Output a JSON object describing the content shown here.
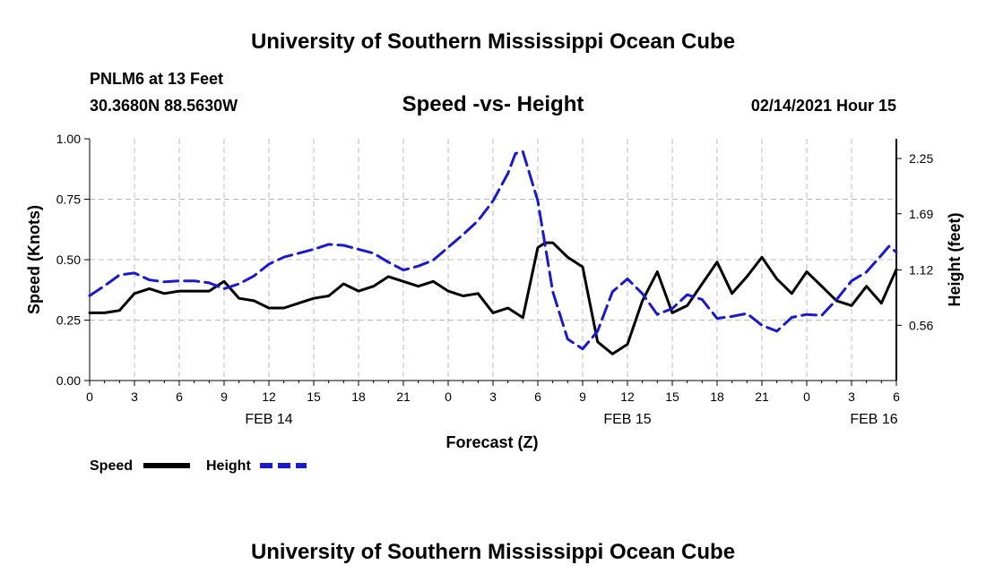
{
  "header": {
    "title": "University of Southern Mississippi Ocean Cube",
    "station": "PNLM6 at 13 Feet",
    "coords": "30.3680N 88.5630W",
    "run": "02/14/2021 Hour 15"
  },
  "footer": {
    "title": "University of Southern Mississippi Ocean Cube"
  },
  "colors": {
    "speed": "#000000",
    "height": "#1a1acc",
    "grid": "#bbbbbb"
  },
  "chart_data": {
    "type": "line",
    "title": "Speed -vs- Height",
    "xlabel": "Forecast (Z)",
    "ylabel_left": "Speed (Knots)",
    "ylabel_right": "Height (feet)",
    "xlim": [
      0,
      54
    ],
    "ylim_left": [
      0,
      1
    ],
    "ylim_right": [
      0,
      2.45
    ],
    "x_ticks": [
      0,
      3,
      6,
      9,
      12,
      15,
      18,
      21,
      24,
      27,
      30,
      33,
      36,
      39,
      42,
      45,
      48,
      51,
      54
    ],
    "x_tick_labels": [
      "0",
      "3",
      "6",
      "9",
      "12",
      "15",
      "18",
      "21",
      "0",
      "3",
      "6",
      "9",
      "12",
      "15",
      "18",
      "21",
      "0",
      "3",
      "6"
    ],
    "y_left_ticks": [
      0,
      0.25,
      0.5,
      0.75,
      1.0
    ],
    "y_left_tick_labels": [
      "0.00",
      "0.25",
      "0.50",
      "0.75",
      "1.00"
    ],
    "y_right_ticks": [
      0.56,
      1.12,
      1.69,
      2.25
    ],
    "y_right_tick_labels": [
      "0.56",
      "1.12",
      "1.69",
      "2.25"
    ],
    "date_labels": [
      {
        "x": 12,
        "label": "FEB 14"
      },
      {
        "x": 36,
        "label": "FEB 15"
      },
      {
        "x": 52.5,
        "label": "FEB 16"
      }
    ],
    "grid": true,
    "legend": [
      {
        "name": "Speed",
        "style": "solid"
      },
      {
        "name": "Height",
        "style": "dashed"
      }
    ],
    "series": [
      {
        "name": "Speed",
        "axis": "left",
        "x": [
          0,
          1,
          2,
          3,
          4,
          5,
          6,
          7,
          8,
          9,
          10,
          11,
          12,
          13,
          14,
          15,
          16,
          17,
          18,
          19,
          20,
          21,
          22,
          23,
          24,
          25,
          26,
          27,
          28,
          29,
          30,
          30.5,
          31,
          32,
          33,
          34,
          35,
          35.5,
          36,
          37,
          38,
          39,
          40,
          41,
          42,
          43,
          44,
          45,
          46,
          47,
          48,
          49,
          50,
          51,
          52,
          53,
          54
        ],
        "values": [
          0.28,
          0.28,
          0.29,
          0.36,
          0.38,
          0.36,
          0.37,
          0.37,
          0.37,
          0.41,
          0.34,
          0.33,
          0.3,
          0.3,
          0.32,
          0.34,
          0.35,
          0.4,
          0.37,
          0.39,
          0.43,
          0.41,
          0.39,
          0.41,
          0.37,
          0.35,
          0.36,
          0.28,
          0.3,
          0.26,
          0.55,
          0.57,
          0.57,
          0.51,
          0.47,
          0.16,
          0.11,
          0.13,
          0.15,
          0.33,
          0.45,
          0.28,
          0.31,
          0.4,
          0.49,
          0.36,
          0.43,
          0.51,
          0.42,
          0.36,
          0.45,
          0.39,
          0.33,
          0.31,
          0.39,
          0.32,
          0.46
        ]
      },
      {
        "name": "Height",
        "axis": "right",
        "x": [
          0,
          1,
          2,
          3,
          4,
          5,
          6,
          7,
          8,
          9,
          10,
          11,
          12,
          13,
          14,
          15,
          16,
          17,
          18,
          19,
          20,
          21,
          22,
          23,
          24,
          25,
          26,
          27,
          28,
          28.5,
          29,
          30,
          31,
          32,
          33,
          34,
          35,
          36,
          37,
          38,
          39,
          40,
          41,
          42,
          43,
          44,
          45,
          46,
          47,
          48,
          49,
          50,
          51,
          52,
          53,
          53.5,
          54
        ],
        "values": [
          0.86,
          0.96,
          1.07,
          1.09,
          1.02,
          1.0,
          1.01,
          1.01,
          0.99,
          0.93,
          0.98,
          1.06,
          1.18,
          1.25,
          1.29,
          1.33,
          1.38,
          1.37,
          1.33,
          1.29,
          1.2,
          1.12,
          1.16,
          1.22,
          1.35,
          1.48,
          1.62,
          1.82,
          2.1,
          2.3,
          2.32,
          1.82,
          0.9,
          0.42,
          0.32,
          0.5,
          0.9,
          1.03,
          0.88,
          0.67,
          0.73,
          0.87,
          0.82,
          0.63,
          0.65,
          0.68,
          0.56,
          0.5,
          0.64,
          0.67,
          0.66,
          0.82,
          1.01,
          1.1,
          1.27,
          1.36,
          1.3
        ]
      }
    ]
  }
}
